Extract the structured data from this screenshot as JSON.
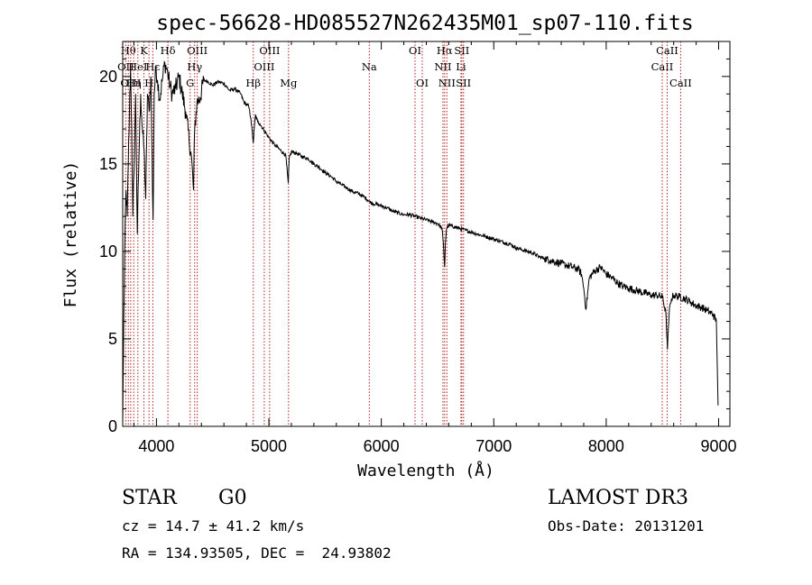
{
  "chart_data": {
    "type": "line",
    "title": "spec-56628-HD085527N262435M01_sp07-110.fits",
    "xlabel": "Wavelength (Å)",
    "ylabel": "Flux (relative)",
    "xlim": [
      3700,
      9100
    ],
    "ylim": [
      0,
      22
    ],
    "xticks": [
      4000,
      5000,
      6000,
      7000,
      8000,
      9000
    ],
    "yticks": [
      0,
      5,
      10,
      15,
      20
    ],
    "spectrum": {
      "x": [
        3700,
        3710,
        3720,
        3730,
        3740,
        3750,
        3760,
        3770,
        3780,
        3790,
        3800,
        3815,
        3830,
        3845,
        3860,
        3875,
        3890,
        3905,
        3920,
        3935,
        3950,
        3965,
        3970,
        3980,
        3995,
        4010,
        4030,
        4050,
        4075,
        4100,
        4120,
        4140,
        4170,
        4200,
        4230,
        4260,
        4290,
        4310,
        4330,
        4340,
        4360,
        4390,
        4420,
        4460,
        4500,
        4550,
        4600,
        4650,
        4700,
        4750,
        4780,
        4820,
        4840,
        4861,
        4880,
        4900,
        4920,
        4960,
        5000,
        5050,
        5100,
        5150,
        5172,
        5180,
        5200,
        5250,
        5300,
        5350,
        5400,
        5450,
        5500,
        5550,
        5600,
        5650,
        5700,
        5750,
        5800,
        5850,
        5890,
        5900,
        5950,
        6000,
        6050,
        6100,
        6150,
        6200,
        6250,
        6300,
        6350,
        6400,
        6450,
        6500,
        6540,
        6555,
        6563,
        6570,
        6580,
        6600,
        6650,
        6700,
        6750,
        6800,
        6850,
        6900,
        6950,
        7000,
        7050,
        7100,
        7150,
        7200,
        7250,
        7300,
        7350,
        7400,
        7450,
        7500,
        7550,
        7600,
        7650,
        7700,
        7750,
        7780,
        7800,
        7820,
        7850,
        7900,
        7950,
        8000,
        8050,
        8100,
        8150,
        8200,
        8250,
        8300,
        8350,
        8400,
        8450,
        8500,
        8530,
        8545,
        8560,
        8580,
        8600,
        8650,
        8700,
        8750,
        8800,
        8850,
        8900,
        8950,
        8980,
        8995
      ],
      "y": [
        0.1,
        6.2,
        11,
        13.5,
        12,
        15,
        18,
        20.5,
        17,
        12,
        14.5,
        19,
        11,
        15.5,
        19,
        17,
        15.8,
        13,
        19,
        18,
        20,
        13.5,
        11.8,
        19,
        20.5,
        19.8,
        18.7,
        19.7,
        20.8,
        20.2,
        19.5,
        19,
        19.3,
        20,
        19,
        18,
        16.4,
        15.5,
        13.5,
        17,
        18.5,
        18.8,
        19.8,
        19.7,
        19.5,
        19.7,
        19.6,
        19.2,
        19.3,
        19,
        18.5,
        18.3,
        17.6,
        16.2,
        17.8,
        17.4,
        17.3,
        16.9,
        16.5,
        16.1,
        15.8,
        15.5,
        13.9,
        15.3,
        15.7,
        15.6,
        15.4,
        15.3,
        15,
        14.8,
        14.5,
        14.3,
        14,
        13.8,
        13.6,
        13.4,
        13.3,
        13.1,
        12.9,
        12.8,
        12.7,
        12.6,
        12.5,
        12.3,
        12.2,
        12.1,
        12.1,
        12,
        11.9,
        11.8,
        11.7,
        11.6,
        11.3,
        10.1,
        9.1,
        10.5,
        11.3,
        11.5,
        11.4,
        11.3,
        11.2,
        11.1,
        11,
        10.9,
        10.8,
        10.7,
        10.6,
        10.5,
        10.4,
        10.2,
        10.1,
        10,
        9.9,
        9.7,
        9.6,
        9.5,
        9.4,
        9.3,
        9.2,
        9.1,
        9,
        8.7,
        7.9,
        6.7,
        8.5,
        8.9,
        9.1,
        8.7,
        8.5,
        8.2,
        8,
        7.9,
        7.8,
        7.7,
        7.6,
        7.5,
        7.5,
        7.4,
        6.5,
        4.4,
        6.5,
        7.3,
        7.5,
        7.4,
        7.3,
        7.1,
        6.9,
        6.8,
        6.6,
        6.4,
        6,
        1.2
      ]
    },
    "line_markers": [
      {
        "wavelength": 3727,
        "label": "OII",
        "row": 2
      },
      {
        "wavelength": 3750,
        "label": "Hθ",
        "row": 1
      },
      {
        "wavelength": 3771,
        "label": "OIII",
        "row": 3
      },
      {
        "wavelength": 3798,
        "label": "Hη",
        "row": 3
      },
      {
        "wavelength": 3835,
        "label": "HeI",
        "row": 2
      },
      {
        "wavelength": 3889,
        "label": "K",
        "row": 1
      },
      {
        "wavelength": 3934,
        "label": "H",
        "row": 3
      },
      {
        "wavelength": 3968,
        "label": "Hε",
        "row": 2
      },
      {
        "wavelength": 4102,
        "label": "Hδ",
        "row": 1
      },
      {
        "wavelength": 4300,
        "label": "G",
        "row": 3
      },
      {
        "wavelength": 4340,
        "label": "Hγ",
        "row": 2
      },
      {
        "wavelength": 4363,
        "label": "OIII",
        "row": 1
      },
      {
        "wavelength": 4861,
        "label": "Hβ",
        "row": 3
      },
      {
        "wavelength": 4959,
        "label": "OIII",
        "row": 2
      },
      {
        "wavelength": 5007,
        "label": "OIII",
        "row": 1
      },
      {
        "wavelength": 5175,
        "label": "Mg",
        "row": 3
      },
      {
        "wavelength": 5893,
        "label": "Na",
        "row": 2
      },
      {
        "wavelength": 6300,
        "label": "OI",
        "row": 1
      },
      {
        "wavelength": 6364,
        "label": "OI",
        "row": 3
      },
      {
        "wavelength": 6548,
        "label": "NII",
        "row": 2
      },
      {
        "wavelength": 6563,
        "label": "Hα",
        "row": 1
      },
      {
        "wavelength": 6583,
        "label": "NII",
        "row": 3
      },
      {
        "wavelength": 6708,
        "label": "Li",
        "row": 2
      },
      {
        "wavelength": 6716,
        "label": "SII",
        "row": 1
      },
      {
        "wavelength": 6731,
        "label": "SII",
        "row": 3
      },
      {
        "wavelength": 8498,
        "label": "CaII",
        "row": 2
      },
      {
        "wavelength": 8542,
        "label": "CaII",
        "row": 1
      },
      {
        "wavelength": 8662,
        "label": "CaII",
        "row": 3
      }
    ],
    "marker_color": "#b22222",
    "line_color": "#000000"
  },
  "info": {
    "class": "STAR",
    "subclass": "G0",
    "survey": "LAMOST DR3",
    "redshift": "cz = 14.7 ± 41.2 km/s",
    "obs_date": "Obs-Date: 20131201",
    "coords": "RA = 134.93505, DEC =  24.93802"
  }
}
